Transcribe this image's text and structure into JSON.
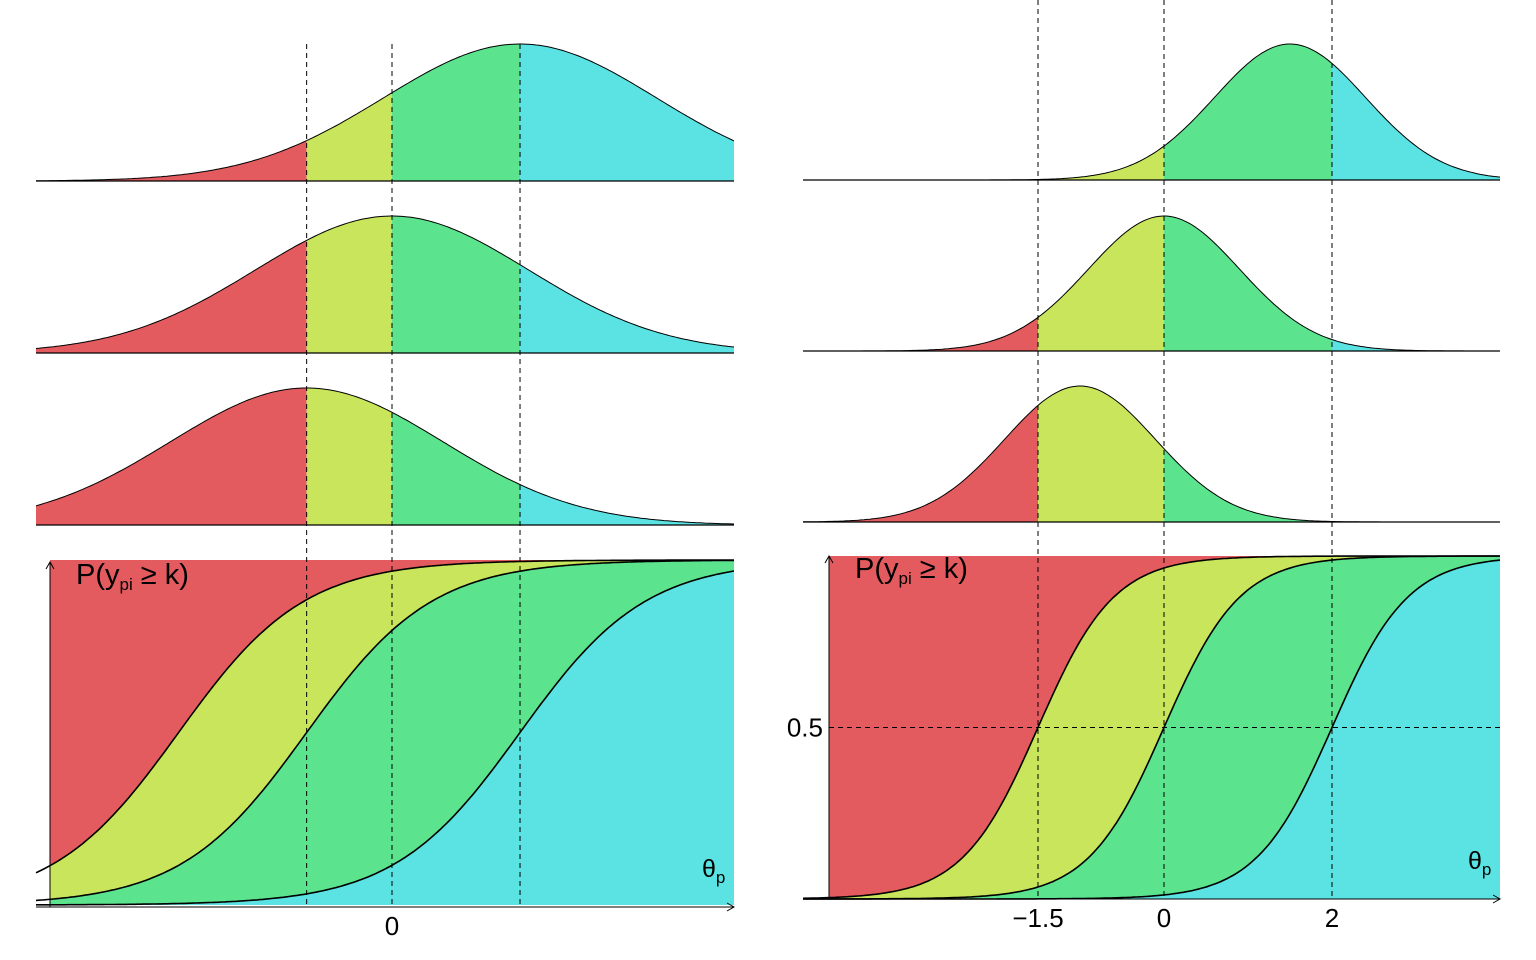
{
  "colors": {
    "category_0": "#E35B5E",
    "category_1": "#C8E55C",
    "category_2": "#5BE38D",
    "category_3": "#5BE3E3"
  },
  "panels": [
    {
      "name": "left",
      "thresholds": [
        -0.5,
        0,
        0.75
      ],
      "curve_centers": [
        -1.25,
        -0.5,
        0.75
      ],
      "density_means": [
        -0.5,
        0,
        0.75
      ],
      "x_tick_labels": [
        {
          "x": 0,
          "text": "0"
        }
      ],
      "y_tick_label": null,
      "y_axis_label": {
        "main": "P(y",
        "sub": "pi",
        "rest": " ≥ k)"
      },
      "x_axis_label": {
        "main": "θ",
        "sub": "p"
      }
    },
    {
      "name": "right",
      "thresholds": [
        -1.5,
        0,
        2
      ],
      "curve_centers": [
        -1.5,
        0,
        2
      ],
      "density_means": [
        -1,
        0,
        1.5
      ],
      "x_tick_labels": [
        {
          "x": -1.5,
          "text": "−1.5"
        },
        {
          "x": 0,
          "text": "0"
        },
        {
          "x": 2,
          "text": "2"
        }
      ],
      "y_tick_label": {
        "y": 0.5,
        "text": "0.5"
      },
      "y_axis_label": {
        "main": "P(y",
        "sub": "pi",
        "rest": " ≥ k)"
      },
      "x_axis_label": {
        "main": "θ",
        "sub": "p"
      }
    }
  ]
}
